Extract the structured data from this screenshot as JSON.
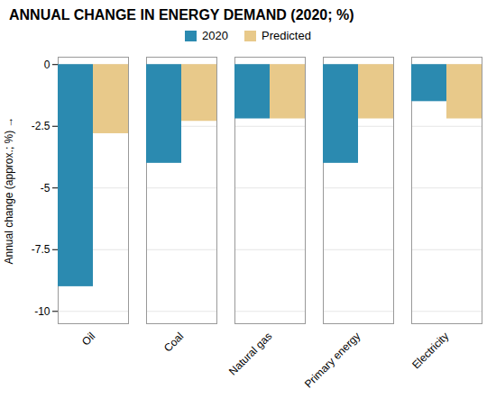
{
  "chart_data": {
    "type": "bar",
    "title": "ANNUAL CHANGE IN ENERGY DEMAND (2020; %)",
    "categories": [
      "Oil",
      "Coal",
      "Natural gas",
      "Primary energy",
      "Electricity"
    ],
    "series": [
      {
        "name": "2020",
        "color": "#2b8ab0",
        "values": [
          -9.0,
          -4.0,
          -2.2,
          -4.0,
          -1.5
        ]
      },
      {
        "name": "Predicted",
        "color": "#e8c98a",
        "values": [
          -2.8,
          -2.3,
          -2.2,
          -2.2,
          -2.2
        ]
      }
    ],
    "ylabel": "Annual change (approx.; %)",
    "ylim": [
      -10.5,
      0.3
    ],
    "yticks": [
      0,
      -2.5,
      -5,
      -7.5,
      -10
    ],
    "grid": true,
    "legend": "upper center"
  }
}
